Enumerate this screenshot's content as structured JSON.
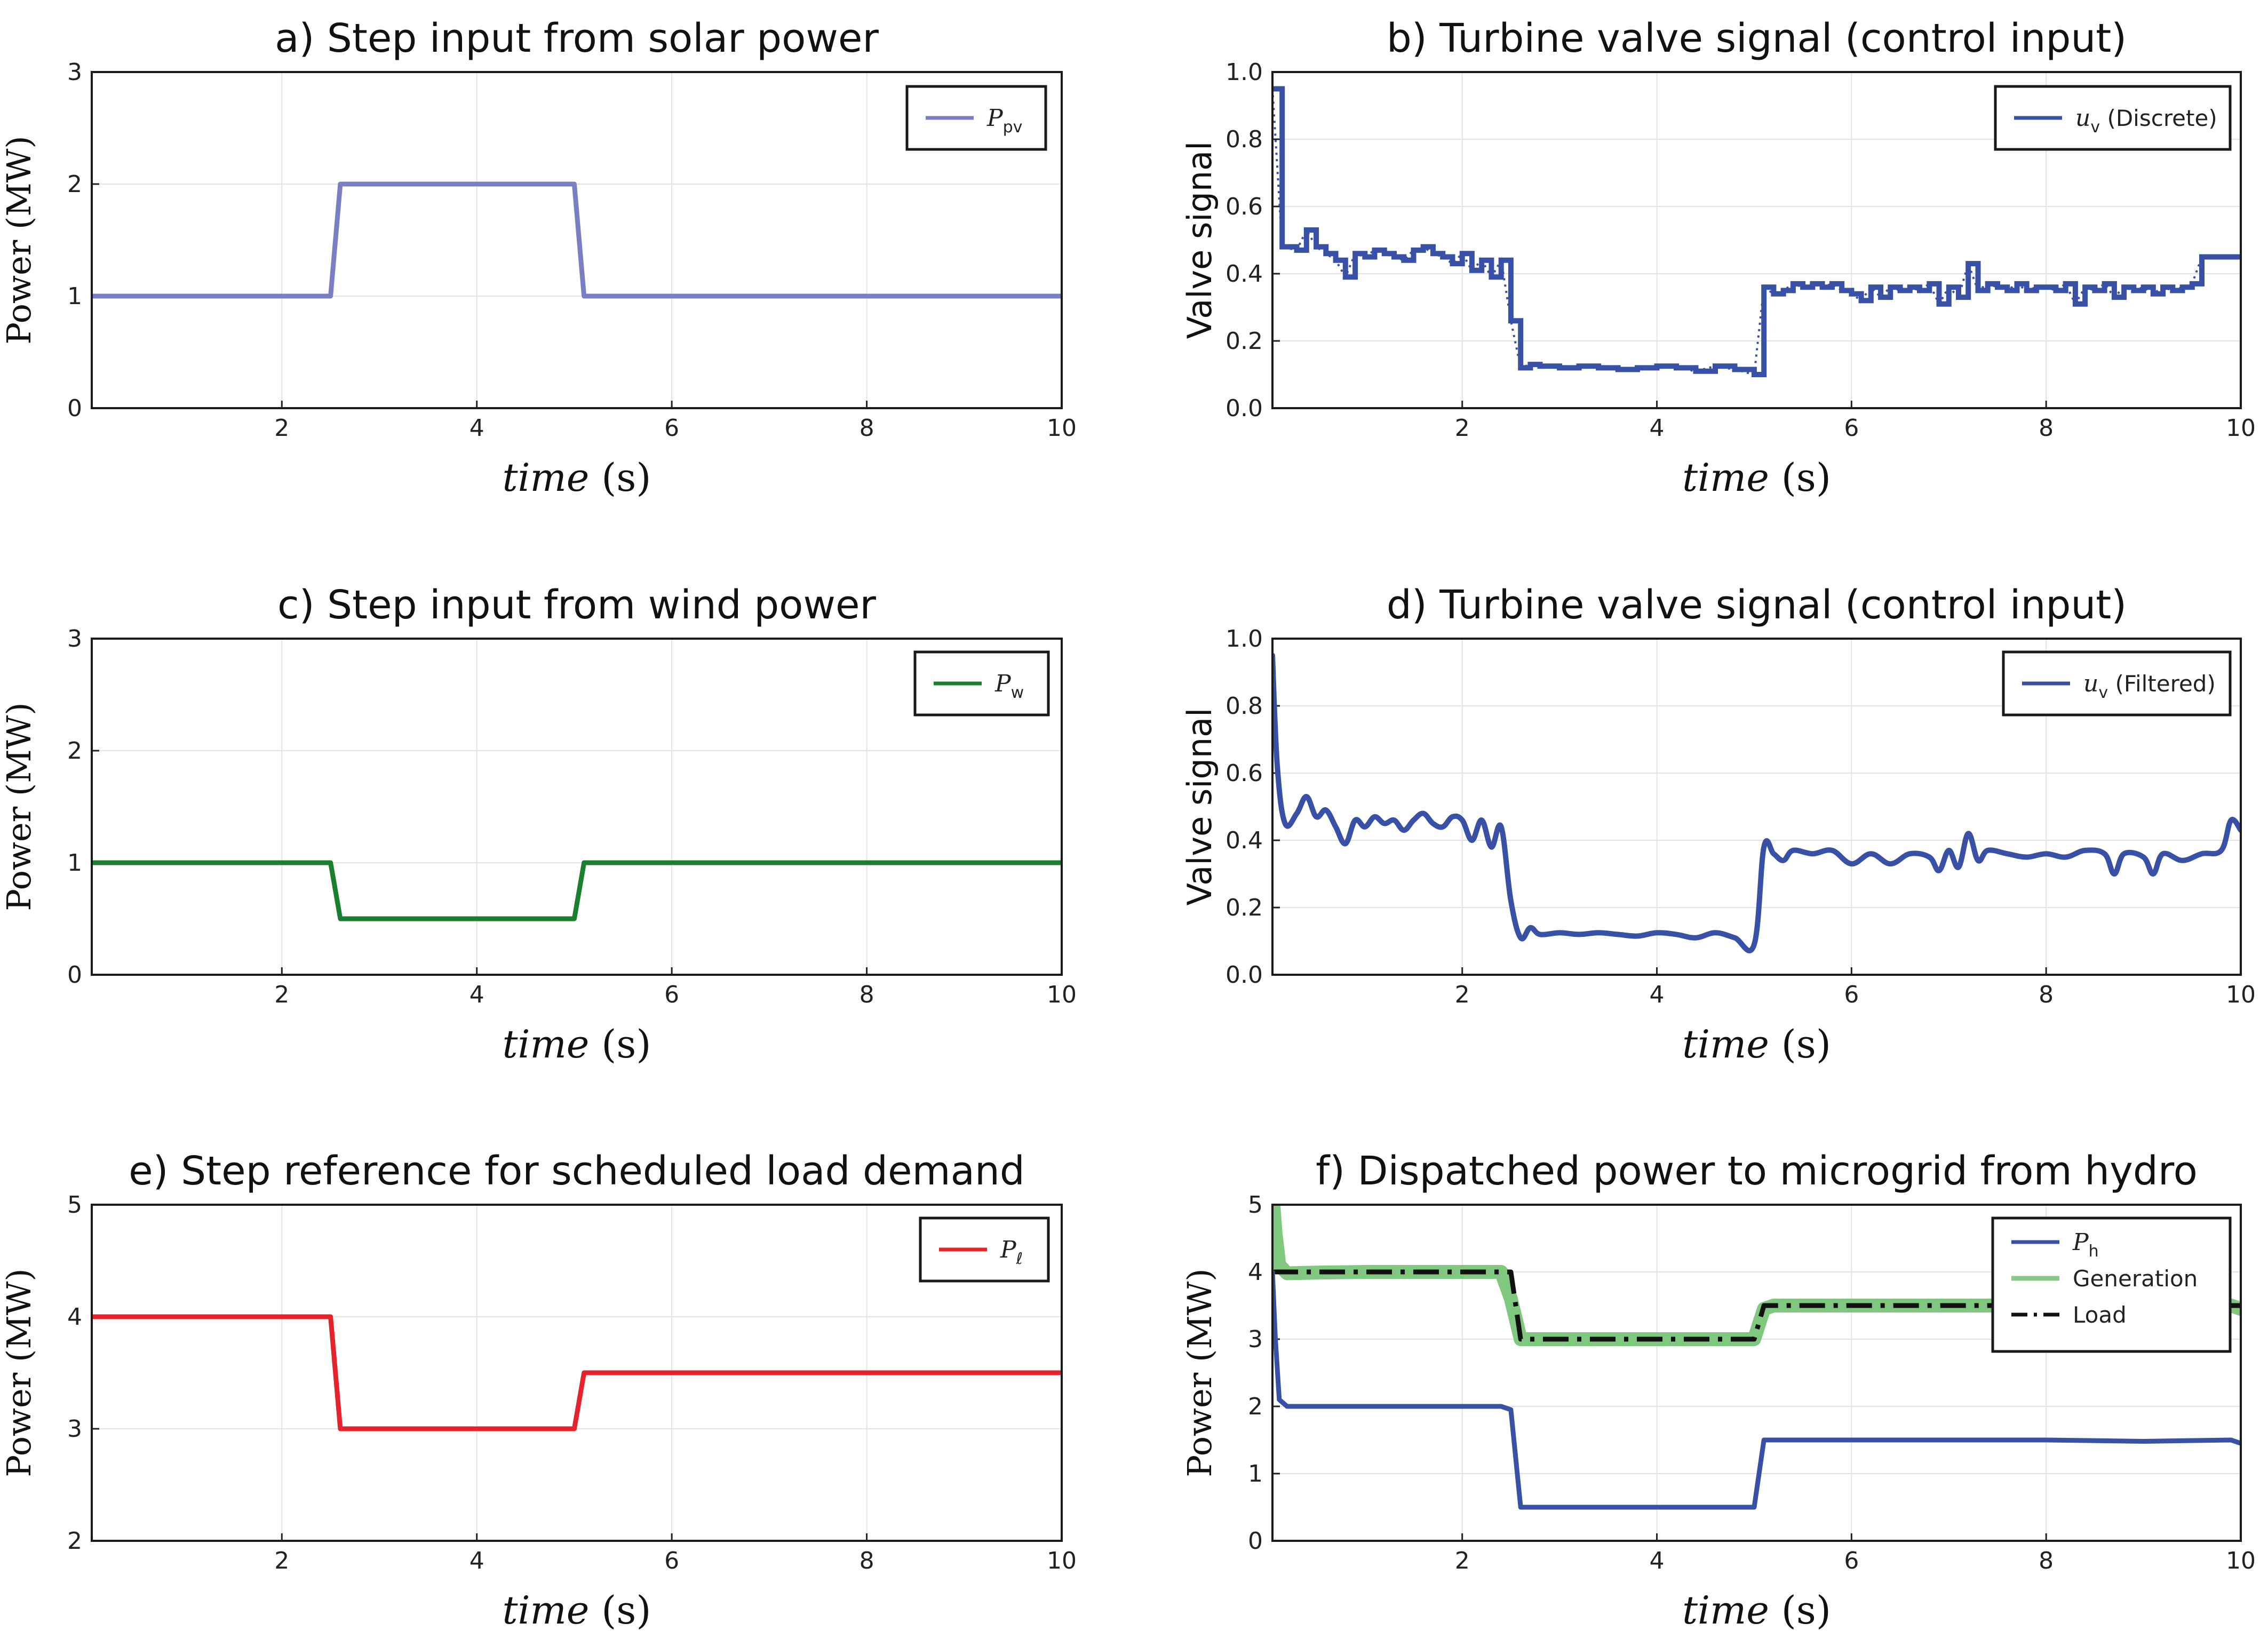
{
  "chart_data": [
    {
      "id": "a",
      "type": "line",
      "title": "a) Step input from solar power",
      "xlabel_italic": "time",
      "xlabel_unit": " (s)",
      "ylabel": "Power (MW)",
      "xlim": [
        0.05,
        10
      ],
      "ylim": [
        0,
        3
      ],
      "xticks": [
        2,
        4,
        6,
        8,
        10
      ],
      "yticks": [
        0,
        1,
        2,
        3
      ],
      "grid": true,
      "legend": "top-right",
      "series": [
        {
          "name": "Ppv",
          "legend_symbol": "P",
          "legend_sub": "pv",
          "legend_text": "",
          "color": "#7a7fc4",
          "dash": "solid",
          "x": [
            0.05,
            2.5,
            2.6,
            5.0,
            5.1,
            10
          ],
          "y": [
            1,
            1,
            2,
            2,
            1,
            1
          ]
        }
      ]
    },
    {
      "id": "b",
      "type": "line",
      "title": "b) Turbine valve signal (control input)",
      "xlabel_italic": "time",
      "xlabel_unit": " (s)",
      "ylabel": "Valve signal",
      "xlim": [
        0.05,
        10
      ],
      "ylim": [
        0,
        1
      ],
      "xticks": [
        2,
        4,
        6,
        8,
        10
      ],
      "yticks": [
        0.0,
        0.2,
        0.4,
        0.6,
        0.8,
        1.0
      ],
      "grid": true,
      "legend": "top-right",
      "series": [
        {
          "name": "uv (Discrete)",
          "legend_symbol": "u",
          "legend_sub": "v",
          "legend_text": " (Discrete)",
          "color": "#3850a5",
          "dash": "step",
          "x": [
            0.05,
            0.15,
            0.3,
            0.4,
            0.5,
            0.6,
            0.7,
            0.8,
            0.9,
            1.0,
            1.1,
            1.2,
            1.3,
            1.4,
            1.5,
            1.6,
            1.7,
            1.8,
            1.9,
            2.0,
            2.1,
            2.2,
            2.3,
            2.4,
            2.5,
            2.6,
            2.7,
            2.8,
            3.0,
            3.2,
            3.4,
            3.6,
            3.8,
            4.0,
            4.2,
            4.4,
            4.6,
            4.8,
            5.0,
            5.1,
            5.2,
            5.3,
            5.4,
            5.5,
            5.6,
            5.7,
            5.8,
            5.9,
            6.0,
            6.1,
            6.2,
            6.3,
            6.4,
            6.5,
            6.6,
            6.7,
            6.8,
            6.9,
            7.0,
            7.1,
            7.2,
            7.3,
            7.4,
            7.5,
            7.6,
            7.7,
            7.8,
            7.9,
            8.0,
            8.1,
            8.2,
            8.3,
            8.4,
            8.5,
            8.6,
            8.7,
            8.8,
            8.9,
            9.0,
            9.1,
            9.2,
            9.3,
            9.4,
            9.5,
            9.6,
            9.7,
            9.8,
            9.9
          ],
          "y": [
            0.95,
            0.48,
            0.47,
            0.53,
            0.48,
            0.46,
            0.44,
            0.39,
            0.46,
            0.45,
            0.47,
            0.46,
            0.45,
            0.44,
            0.47,
            0.48,
            0.46,
            0.45,
            0.43,
            0.46,
            0.41,
            0.44,
            0.39,
            0.44,
            0.26,
            0.12,
            0.13,
            0.125,
            0.12,
            0.125,
            0.12,
            0.115,
            0.12,
            0.125,
            0.12,
            0.11,
            0.125,
            0.115,
            0.1,
            0.36,
            0.34,
            0.35,
            0.37,
            0.36,
            0.37,
            0.36,
            0.37,
            0.35,
            0.34,
            0.32,
            0.36,
            0.33,
            0.36,
            0.35,
            0.36,
            0.35,
            0.37,
            0.31,
            0.36,
            0.33,
            0.43,
            0.35,
            0.37,
            0.36,
            0.35,
            0.37,
            0.35,
            0.36,
            0.36,
            0.35,
            0.37,
            0.31,
            0.36,
            0.35,
            0.37,
            0.33,
            0.36,
            0.35,
            0.36,
            0.34,
            0.36,
            0.35,
            0.36,
            0.37,
            0.45,
            0.45,
            0.45,
            0.45
          ]
        }
      ]
    },
    {
      "id": "c",
      "type": "line",
      "title": "c) Step input from wind power",
      "xlabel_italic": "time",
      "xlabel_unit": " (s)",
      "ylabel": "Power (MW)",
      "xlim": [
        0.05,
        10
      ],
      "ylim": [
        0,
        3
      ],
      "xticks": [
        2,
        4,
        6,
        8,
        10
      ],
      "yticks": [
        0,
        1,
        2,
        3
      ],
      "grid": true,
      "legend": "top-right",
      "series": [
        {
          "name": "Pw",
          "legend_symbol": "P",
          "legend_sub": "w",
          "legend_text": "",
          "color": "#1a7f2e",
          "dash": "solid",
          "x": [
            0.05,
            2.5,
            2.6,
            5.0,
            5.1,
            10
          ],
          "y": [
            1,
            1,
            0.5,
            0.5,
            1,
            1
          ]
        }
      ]
    },
    {
      "id": "d",
      "type": "line",
      "title": "d) Turbine valve signal (control input)",
      "xlabel_italic": "time",
      "xlabel_unit": " (s)",
      "ylabel": "Valve signal",
      "xlim": [
        0.05,
        10
      ],
      "ylim": [
        0,
        1
      ],
      "xticks": [
        2,
        4,
        6,
        8,
        10
      ],
      "yticks": [
        0.0,
        0.2,
        0.4,
        0.6,
        0.8,
        1.0
      ],
      "grid": true,
      "legend": "top-right",
      "series": [
        {
          "name": "uv (Filtered)",
          "legend_symbol": "u",
          "legend_sub": "v",
          "legend_text": " (Filtered)",
          "color": "#3850a5",
          "dash": "smooth",
          "x": [
            0.05,
            0.1,
            0.18,
            0.3,
            0.4,
            0.5,
            0.6,
            0.7,
            0.8,
            0.9,
            1.0,
            1.1,
            1.2,
            1.3,
            1.4,
            1.5,
            1.6,
            1.7,
            1.8,
            1.9,
            2.0,
            2.1,
            2.2,
            2.3,
            2.4,
            2.5,
            2.6,
            2.7,
            2.8,
            3.0,
            3.2,
            3.4,
            3.6,
            3.8,
            4.0,
            4.2,
            4.4,
            4.6,
            4.8,
            5.0,
            5.1,
            5.2,
            5.3,
            5.4,
            5.6,
            5.8,
            6.0,
            6.2,
            6.4,
            6.6,
            6.8,
            6.9,
            7.0,
            7.1,
            7.2,
            7.3,
            7.4,
            7.6,
            7.8,
            8.0,
            8.2,
            8.4,
            8.6,
            8.7,
            8.8,
            9.0,
            9.1,
            9.2,
            9.4,
            9.6,
            9.8,
            9.9,
            10.0
          ],
          "y": [
            0.95,
            0.62,
            0.45,
            0.48,
            0.53,
            0.47,
            0.49,
            0.44,
            0.39,
            0.46,
            0.44,
            0.47,
            0.45,
            0.46,
            0.43,
            0.46,
            0.48,
            0.45,
            0.44,
            0.47,
            0.46,
            0.4,
            0.46,
            0.38,
            0.44,
            0.22,
            0.11,
            0.14,
            0.12,
            0.125,
            0.12,
            0.125,
            0.12,
            0.115,
            0.125,
            0.12,
            0.11,
            0.125,
            0.11,
            0.09,
            0.38,
            0.36,
            0.34,
            0.37,
            0.36,
            0.37,
            0.33,
            0.36,
            0.33,
            0.36,
            0.35,
            0.31,
            0.37,
            0.32,
            0.42,
            0.34,
            0.37,
            0.36,
            0.35,
            0.36,
            0.35,
            0.37,
            0.36,
            0.3,
            0.36,
            0.35,
            0.3,
            0.36,
            0.34,
            0.36,
            0.37,
            0.46,
            0.43
          ]
        }
      ]
    },
    {
      "id": "e",
      "type": "line",
      "title": "e) Step reference for scheduled load demand",
      "xlabel_italic": "time",
      "xlabel_unit": " (s)",
      "ylabel": "Power (MW)",
      "xlim": [
        0.05,
        10
      ],
      "ylim": [
        2,
        5
      ],
      "xticks": [
        2,
        4,
        6,
        8,
        10
      ],
      "yticks": [
        2,
        3,
        4,
        5
      ],
      "grid": true,
      "legend": "top-right",
      "series": [
        {
          "name": "Pℓ",
          "legend_symbol": "P",
          "legend_sub": "ℓ",
          "legend_text": "",
          "color": "#e4232a",
          "dash": "solid",
          "x": [
            0.05,
            2.5,
            2.6,
            5.0,
            5.1,
            10
          ],
          "y": [
            4,
            4,
            3,
            3,
            3.5,
            3.5
          ]
        }
      ]
    },
    {
      "id": "f",
      "type": "line",
      "title": "f) Dispatched power to microgrid from hydro",
      "xlabel_italic": "time",
      "xlabel_unit": " (s)",
      "ylabel": "Power (MW)",
      "xlim": [
        0.05,
        10
      ],
      "ylim": [
        0,
        5
      ],
      "xticks": [
        2,
        4,
        6,
        8,
        10
      ],
      "yticks": [
        0,
        1,
        2,
        3,
        4,
        5
      ],
      "grid": true,
      "legend": "top-right",
      "series": [
        {
          "name": "Generation",
          "legend_symbol": "",
          "legend_sub": "",
          "legend_text": "Generation",
          "color": "#72c172",
          "dash": "thick",
          "x": [
            0.05,
            0.08,
            0.12,
            0.2,
            0.5,
            1.0,
            1.5,
            2.0,
            2.4,
            2.5,
            2.6,
            2.7,
            3.5,
            4.5,
            5.0,
            5.1,
            5.2,
            6.0,
            7.0,
            8.0,
            9.0,
            9.9,
            10.0
          ],
          "y": [
            5.2,
            4.6,
            4.1,
            3.98,
            3.99,
            4.0,
            4.0,
            4.0,
            4.0,
            3.6,
            3.0,
            3.0,
            3.0,
            3.0,
            3.0,
            3.45,
            3.5,
            3.5,
            3.5,
            3.5,
            3.5,
            3.5,
            3.45
          ]
        },
        {
          "name": "Load",
          "legend_symbol": "",
          "legend_sub": "",
          "legend_text": "Load",
          "color": "#111111",
          "dash": "dashdot",
          "x": [
            0.05,
            2.5,
            2.6,
            5.0,
            5.1,
            10
          ],
          "y": [
            4,
            4,
            3,
            3,
            3.5,
            3.5
          ]
        },
        {
          "name": "Ph",
          "legend_symbol": "P",
          "legend_sub": "h",
          "legend_text": "",
          "color": "#3850a5",
          "dash": "solid",
          "x": [
            0.05,
            0.08,
            0.12,
            0.2,
            0.5,
            1.0,
            1.5,
            2.0,
            2.4,
            2.5,
            2.6,
            3.0,
            4.0,
            5.0,
            5.1,
            6.0,
            7.0,
            8.0,
            9.0,
            9.9,
            10.0
          ],
          "y": [
            4.0,
            3.0,
            2.1,
            2.0,
            2.0,
            2.0,
            2.0,
            2.0,
            2.0,
            1.95,
            0.5,
            0.5,
            0.5,
            0.5,
            1.5,
            1.5,
            1.5,
            1.5,
            1.48,
            1.5,
            1.45
          ]
        }
      ]
    }
  ]
}
